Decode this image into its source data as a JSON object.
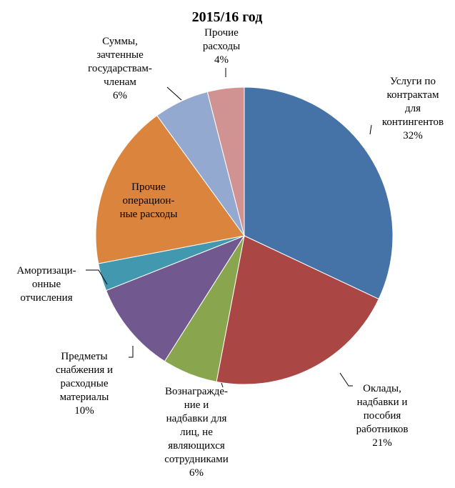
{
  "chart_data": {
    "type": "pie",
    "title": "2015/16  год",
    "categories": [
      "Услуги по\nконтрактам\nдля\nконтингентов",
      "Оклады,\nнадбавки и\nпособия\nработников",
      "Вознагражде-\nние и\nнадбавки для\nлиц, не\nявляющихся\nсотрудниками",
      "Предметы\nснабжения и\nрасходные\nматериалы",
      "Амортизаци-\nонные\nотчисления",
      "Прочие\nоперацион-\nные расходы",
      "Суммы,\nзачтенные\nгосударствам-\nчленам",
      "Прочие\nрасходы"
    ],
    "values": [
      32,
      21,
      6,
      10,
      3,
      18,
      6,
      4
    ],
    "value_labels": [
      "32%",
      "21%",
      "6%",
      "10%",
      null,
      null,
      "6%",
      "4%"
    ],
    "colors": [
      "#4572a7",
      "#aa4643",
      "#89a54e",
      "#71588f",
      "#4198af",
      "#db843d",
      "#93a9cf",
      "#d19392"
    ]
  }
}
